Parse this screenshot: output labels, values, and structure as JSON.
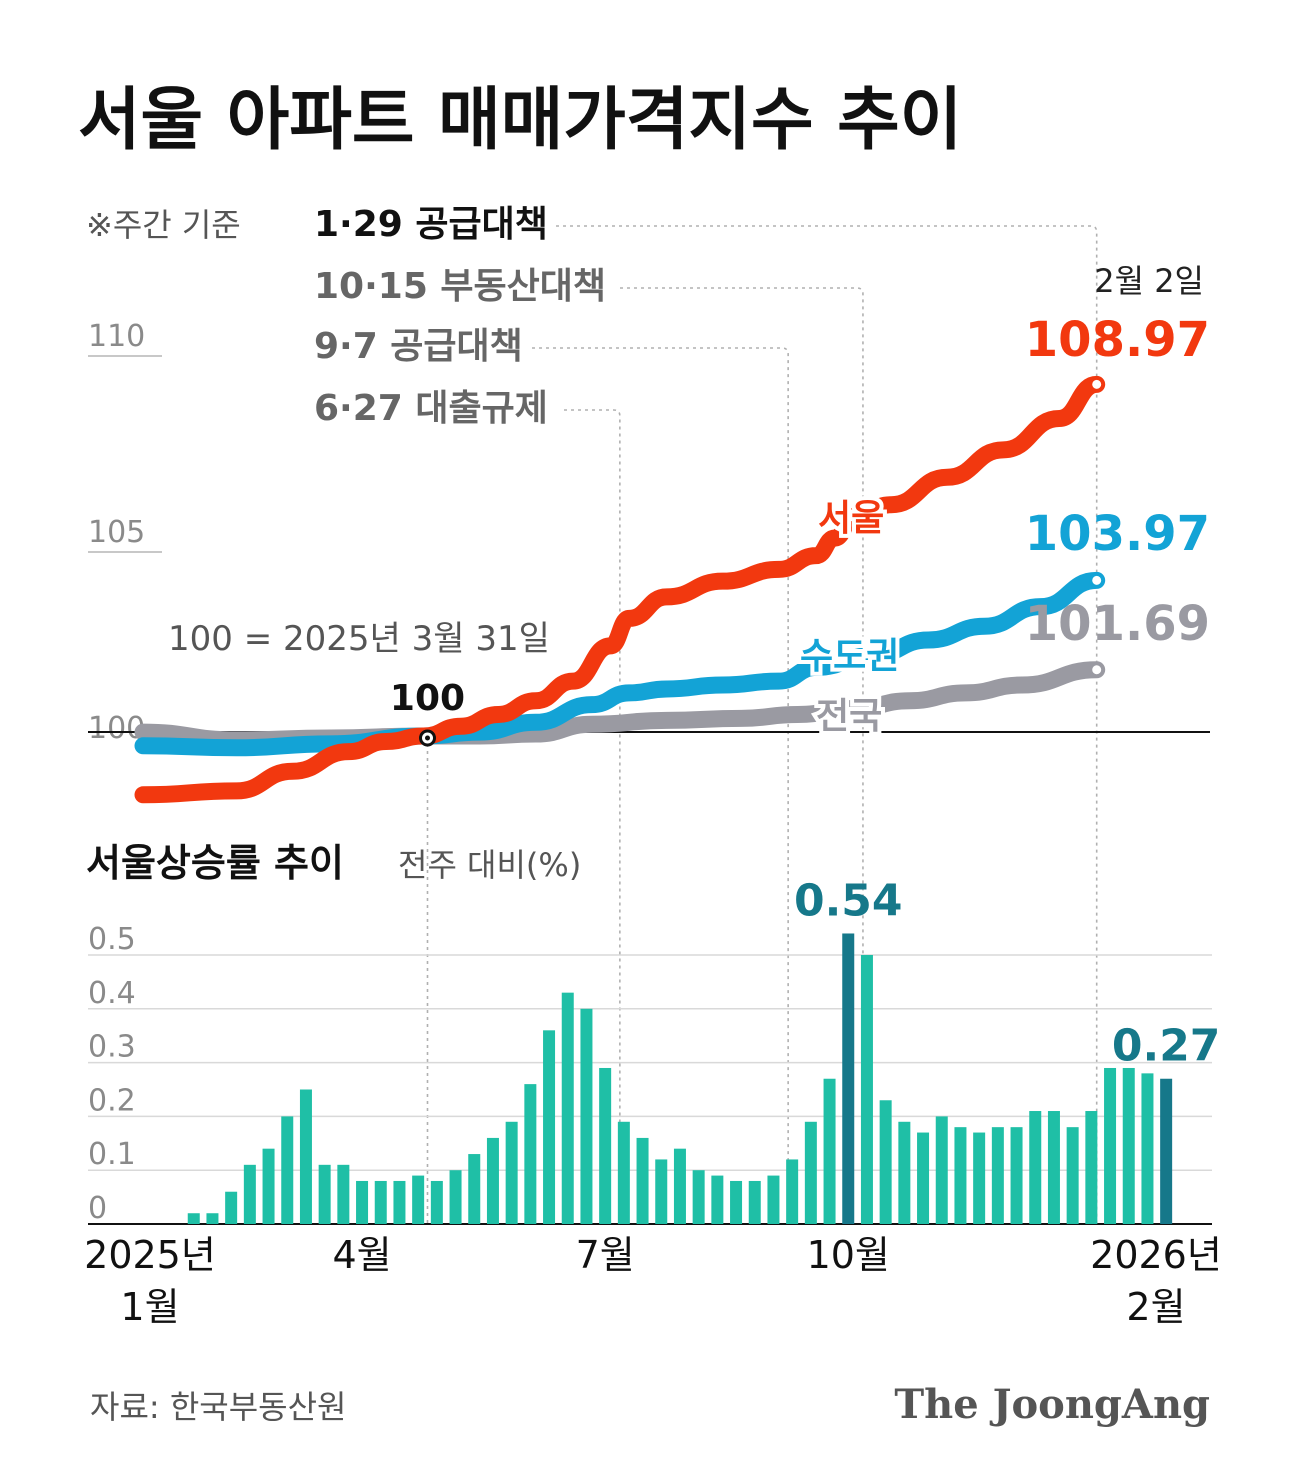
{
  "title": "서울 아파트 매매가격지수 추이",
  "note": "※주간 기준",
  "policies": [
    "1·29 공급대책",
    "10·15 부동산대책",
    "9·7 공급대책",
    "6·27 대출규제"
  ],
  "baseline_note": "100 = 2025년 3월 31일",
  "source": "자료: 한국부동산원",
  "logo": "The JoongAng",
  "colors": {
    "seoul": "#f2380f",
    "metro": "#13a3d6",
    "national": "#9a9aa2",
    "bar": "#1fbfa6",
    "bar_highlight": "#16788a"
  },
  "chart_data": [
    {
      "type": "line",
      "ylim": [
        100,
        110
      ],
      "yticks": [
        "110",
        "105",
        "100"
      ],
      "base_label": "100",
      "date_label": "2월 2일",
      "series": [
        {
          "name": "서울",
          "end_label": "108.97",
          "points": [
            [
              0,
              98.5
            ],
            [
              5,
              98.6
            ],
            [
              8,
              99.1
            ],
            [
              11,
              99.6
            ],
            [
              13,
              99.86
            ],
            [
              15,
              100
            ],
            [
              17,
              100.25
            ],
            [
              19,
              100.55
            ],
            [
              21,
              100.9
            ],
            [
              23,
              101.4
            ],
            [
              25,
              102.3
            ],
            [
              26,
              103.0
            ],
            [
              28,
              103.55
            ],
            [
              31,
              103.95
            ],
            [
              34,
              104.25
            ],
            [
              36,
              104.6
            ],
            [
              37,
              105.05
            ],
            [
              38,
              105.6
            ],
            [
              40,
              105.9
            ],
            [
              43,
              106.6
            ],
            [
              46,
              107.3
            ],
            [
              49,
              108.1
            ],
            [
              51,
              108.97
            ]
          ]
        },
        {
          "name": "수도권",
          "end_label": "103.97",
          "points": [
            [
              0,
              99.75
            ],
            [
              5,
              99.7
            ],
            [
              10,
              99.8
            ],
            [
              15,
              100
            ],
            [
              18,
              100.1
            ],
            [
              21,
              100.35
            ],
            [
              24,
              100.8
            ],
            [
              26,
              101.1
            ],
            [
              28,
              101.2
            ],
            [
              31,
              101.3
            ],
            [
              34,
              101.4
            ],
            [
              36,
              101.75
            ],
            [
              39,
              102.05
            ],
            [
              42,
              102.45
            ],
            [
              45,
              102.8
            ],
            [
              48,
              103.3
            ],
            [
              51,
              103.97
            ]
          ]
        },
        {
          "name": "전국",
          "end_label": "101.69",
          "points": [
            [
              0,
              100.1
            ],
            [
              5,
              99.9
            ],
            [
              10,
              99.95
            ],
            [
              15,
              100
            ],
            [
              18,
              100
            ],
            [
              21,
              100.05
            ],
            [
              24,
              100.3
            ],
            [
              28,
              100.4
            ],
            [
              32,
              100.45
            ],
            [
              35,
              100.55
            ],
            [
              38,
              100.7
            ],
            [
              41,
              100.9
            ],
            [
              44,
              101.1
            ],
            [
              47,
              101.3
            ],
            [
              51,
              101.69
            ]
          ]
        }
      ],
      "markers": [
        {
          "policy": "6·27 대출규제",
          "x": 25.5
        },
        {
          "policy": "9·7 공급대책",
          "x": 34.5
        },
        {
          "policy": "10·15 부동산대책",
          "x": 38.5
        },
        {
          "policy": "1·29 공급대책",
          "x": 51
        }
      ]
    },
    {
      "type": "bar",
      "title": "서울상승률 추이",
      "subtitle": "전주 대비(%)",
      "ylim": [
        0,
        0.5
      ],
      "yticks": [
        "0.5",
        "0.4",
        "0.3",
        "0.2",
        "0.1",
        "0"
      ],
      "xlabels": [
        {
          "label": "2025년\n1월",
          "x": 0
        },
        {
          "label": "4월",
          "x": 12
        },
        {
          "label": "7월",
          "x": 25
        },
        {
          "label": "10월",
          "x": 38
        },
        {
          "label": "2026년\n2월",
          "x": 51
        }
      ],
      "values": [
        0.0,
        0.0,
        0.0,
        0.02,
        0.02,
        0.06,
        0.11,
        0.14,
        0.2,
        0.25,
        0.11,
        0.11,
        0.08,
        0.08,
        0.08,
        0.09,
        0.08,
        0.1,
        0.13,
        0.16,
        0.19,
        0.26,
        0.36,
        0.43,
        0.4,
        0.29,
        0.19,
        0.16,
        0.12,
        0.14,
        0.1,
        0.09,
        0.08,
        0.08,
        0.09,
        0.12,
        0.19,
        0.27,
        0.54,
        0.5,
        0.23,
        0.19,
        0.17,
        0.2,
        0.18,
        0.17,
        0.18,
        0.18,
        0.21,
        0.21,
        0.18,
        0.21,
        0.29,
        0.29,
        0.28,
        0.27
      ],
      "highlights": [
        {
          "index": 38,
          "label": "0.54"
        },
        {
          "index": 55,
          "label": "0.27"
        }
      ]
    }
  ]
}
